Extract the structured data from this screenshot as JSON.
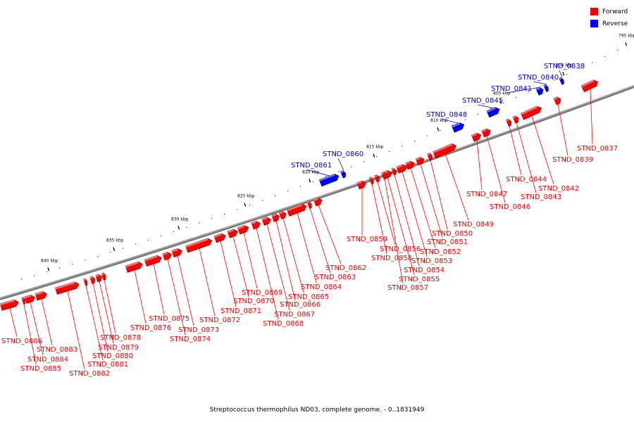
{
  "caption": "Streptococcus thermophilus ND03, complete genome. - 0..1831949",
  "legend": {
    "forward": {
      "label": "Forward",
      "color": "#ff0000"
    },
    "reverse": {
      "label": "Reverse",
      "color": "#0000ff"
    }
  },
  "scale": {
    "ticks": [
      "795 kbp",
      "800 kbp",
      "805 kbp",
      "810 kbp",
      "815 kbp",
      "820 kbp",
      "825 kbp",
      "830 kbp",
      "835 kbp",
      "840 kbp"
    ]
  },
  "genes": [
    {
      "name": "STND_0837",
      "strand": "forward"
    },
    {
      "name": "STND_0838",
      "strand": "reverse"
    },
    {
      "name": "STND_0839",
      "strand": "forward"
    },
    {
      "name": "STND_0840",
      "strand": "reverse"
    },
    {
      "name": "STND_0841",
      "strand": "reverse"
    },
    {
      "name": "STND_0842",
      "strand": "forward"
    },
    {
      "name": "STND_0843",
      "strand": "forward"
    },
    {
      "name": "STND_0844",
      "strand": "forward"
    },
    {
      "name": "STND_0845",
      "strand": "reverse"
    },
    {
      "name": "STND_0846",
      "strand": "forward"
    },
    {
      "name": "STND_0847",
      "strand": "forward"
    },
    {
      "name": "STND_0848",
      "strand": "reverse"
    },
    {
      "name": "STND_0849",
      "strand": "forward"
    },
    {
      "name": "STND_0850",
      "strand": "forward"
    },
    {
      "name": "STND_0851",
      "strand": "forward"
    },
    {
      "name": "STND_0852",
      "strand": "forward"
    },
    {
      "name": "STND_0853",
      "strand": "forward"
    },
    {
      "name": "STND_0854",
      "strand": "forward"
    },
    {
      "name": "STND_0855",
      "strand": "forward"
    },
    {
      "name": "STND_0856",
      "strand": "forward"
    },
    {
      "name": "STND_0857",
      "strand": "forward"
    },
    {
      "name": "STND_0858",
      "strand": "forward"
    },
    {
      "name": "STND_0859",
      "strand": "forward"
    },
    {
      "name": "STND_0860",
      "strand": "reverse"
    },
    {
      "name": "STND_0861",
      "strand": "reverse"
    },
    {
      "name": "STND_0862",
      "strand": "forward"
    },
    {
      "name": "STND_0863",
      "strand": "forward"
    },
    {
      "name": "STND_0864",
      "strand": "forward"
    },
    {
      "name": "STND_0865",
      "strand": "forward"
    },
    {
      "name": "STND_0866",
      "strand": "forward"
    },
    {
      "name": "STND_0867",
      "strand": "forward"
    },
    {
      "name": "STND_0868",
      "strand": "forward"
    },
    {
      "name": "STND_0869",
      "strand": "forward"
    },
    {
      "name": "STND_0870",
      "strand": "forward"
    },
    {
      "name": "STND_0871",
      "strand": "forward"
    },
    {
      "name": "STND_0872",
      "strand": "forward"
    },
    {
      "name": "STND_0873",
      "strand": "forward"
    },
    {
      "name": "STND_0874",
      "strand": "forward"
    },
    {
      "name": "STND_0875",
      "strand": "forward"
    },
    {
      "name": "STND_0876",
      "strand": "forward"
    },
    {
      "name": "STND_0878",
      "strand": "forward"
    },
    {
      "name": "STND_0879",
      "strand": "forward"
    },
    {
      "name": "STND_0880",
      "strand": "forward"
    },
    {
      "name": "STND_0881",
      "strand": "forward"
    },
    {
      "name": "STND_0882",
      "strand": "forward"
    },
    {
      "name": "STND_0883",
      "strand": "forward"
    },
    {
      "name": "STND_0884",
      "strand": "forward"
    },
    {
      "name": "STND_0885",
      "strand": "forward"
    },
    {
      "name": "STND_0886",
      "strand": "forward"
    }
  ]
}
